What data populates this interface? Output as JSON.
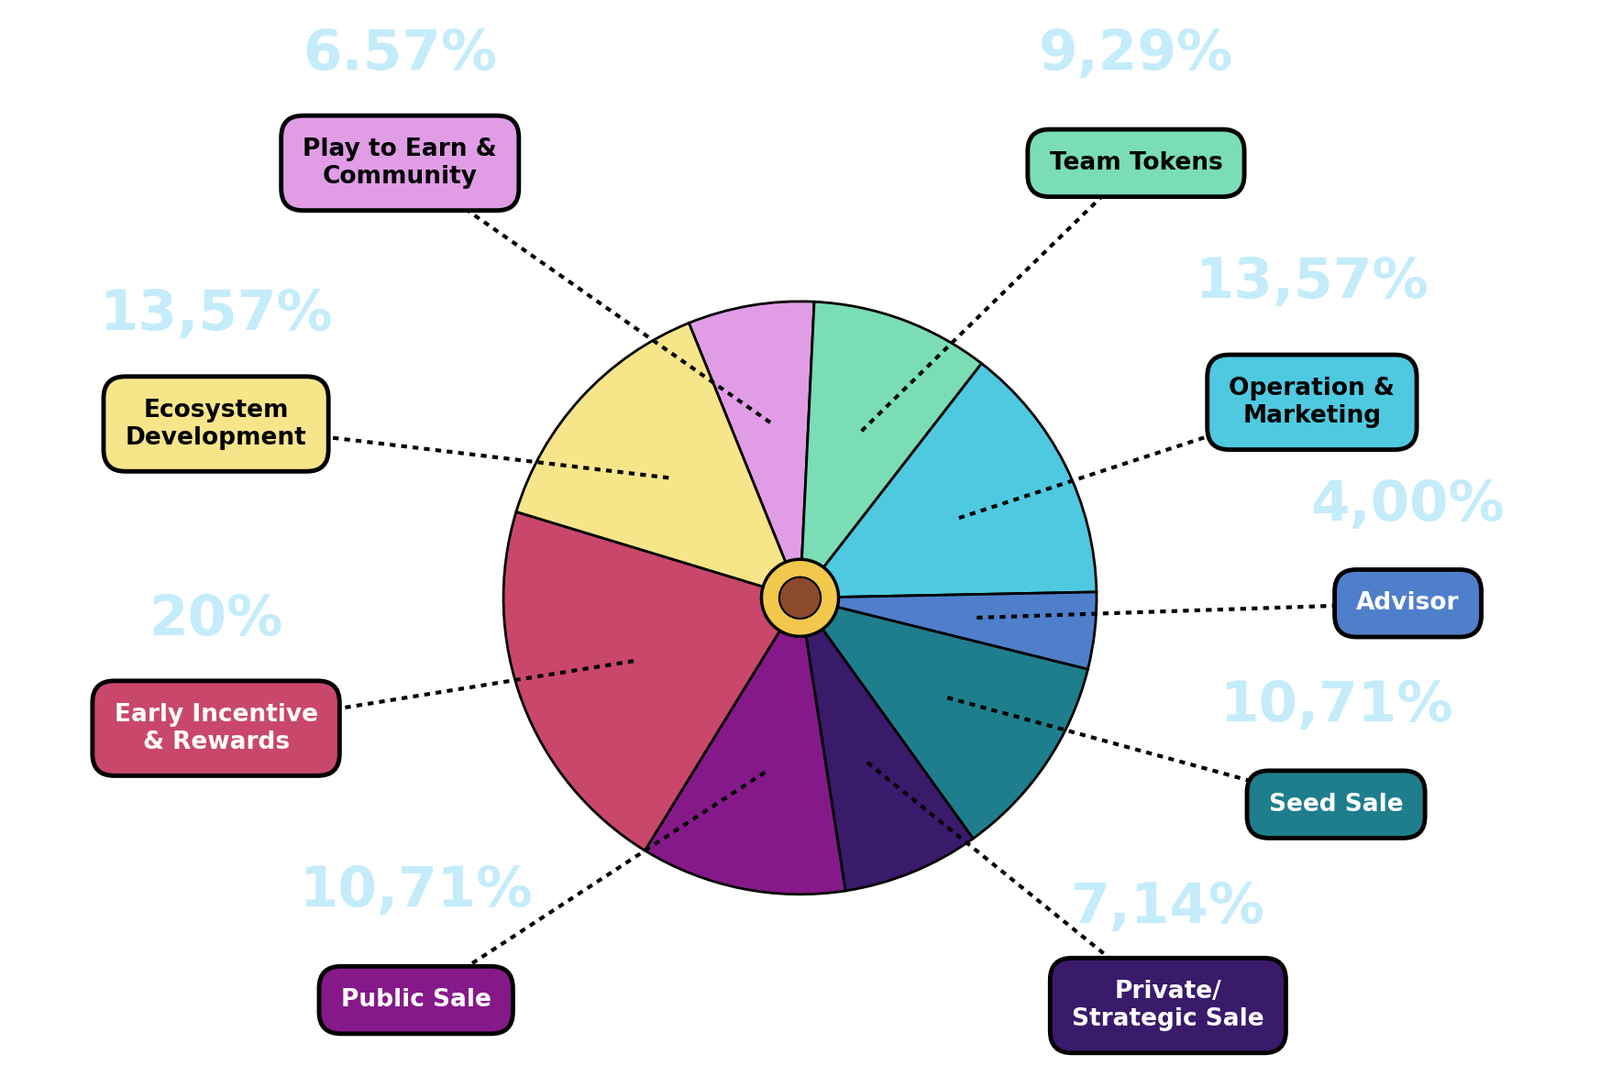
{
  "chart_data": {
    "type": "pie",
    "categories": [
      "Play to Earn & Community",
      "Team Tokens",
      "Operation & Marketing",
      "Advisor",
      "Seed Sale",
      "Private/ Strategic Sale",
      "Public Sale",
      "Early Incentive & Rewards",
      "Ecosystem Development"
    ],
    "values": [
      6.57,
      9.29,
      13.57,
      4.0,
      10.71,
      7.14,
      10.71,
      20,
      13.57
    ],
    "value_labels": [
      "6.57%",
      "9,29%",
      "13,57%",
      "4,00%",
      "10,71%",
      "7,14%",
      "10,71%",
      "20%",
      "13,57%"
    ],
    "colors": [
      "#E09DE6",
      "#7ADDB5",
      "#4FC9E0",
      "#4F7FCB",
      "#1F7E8C",
      "#3A1A6B",
      "#86198A",
      "#C9476B",
      "#F7E58A"
    ],
    "data_labels": true
  }
}
